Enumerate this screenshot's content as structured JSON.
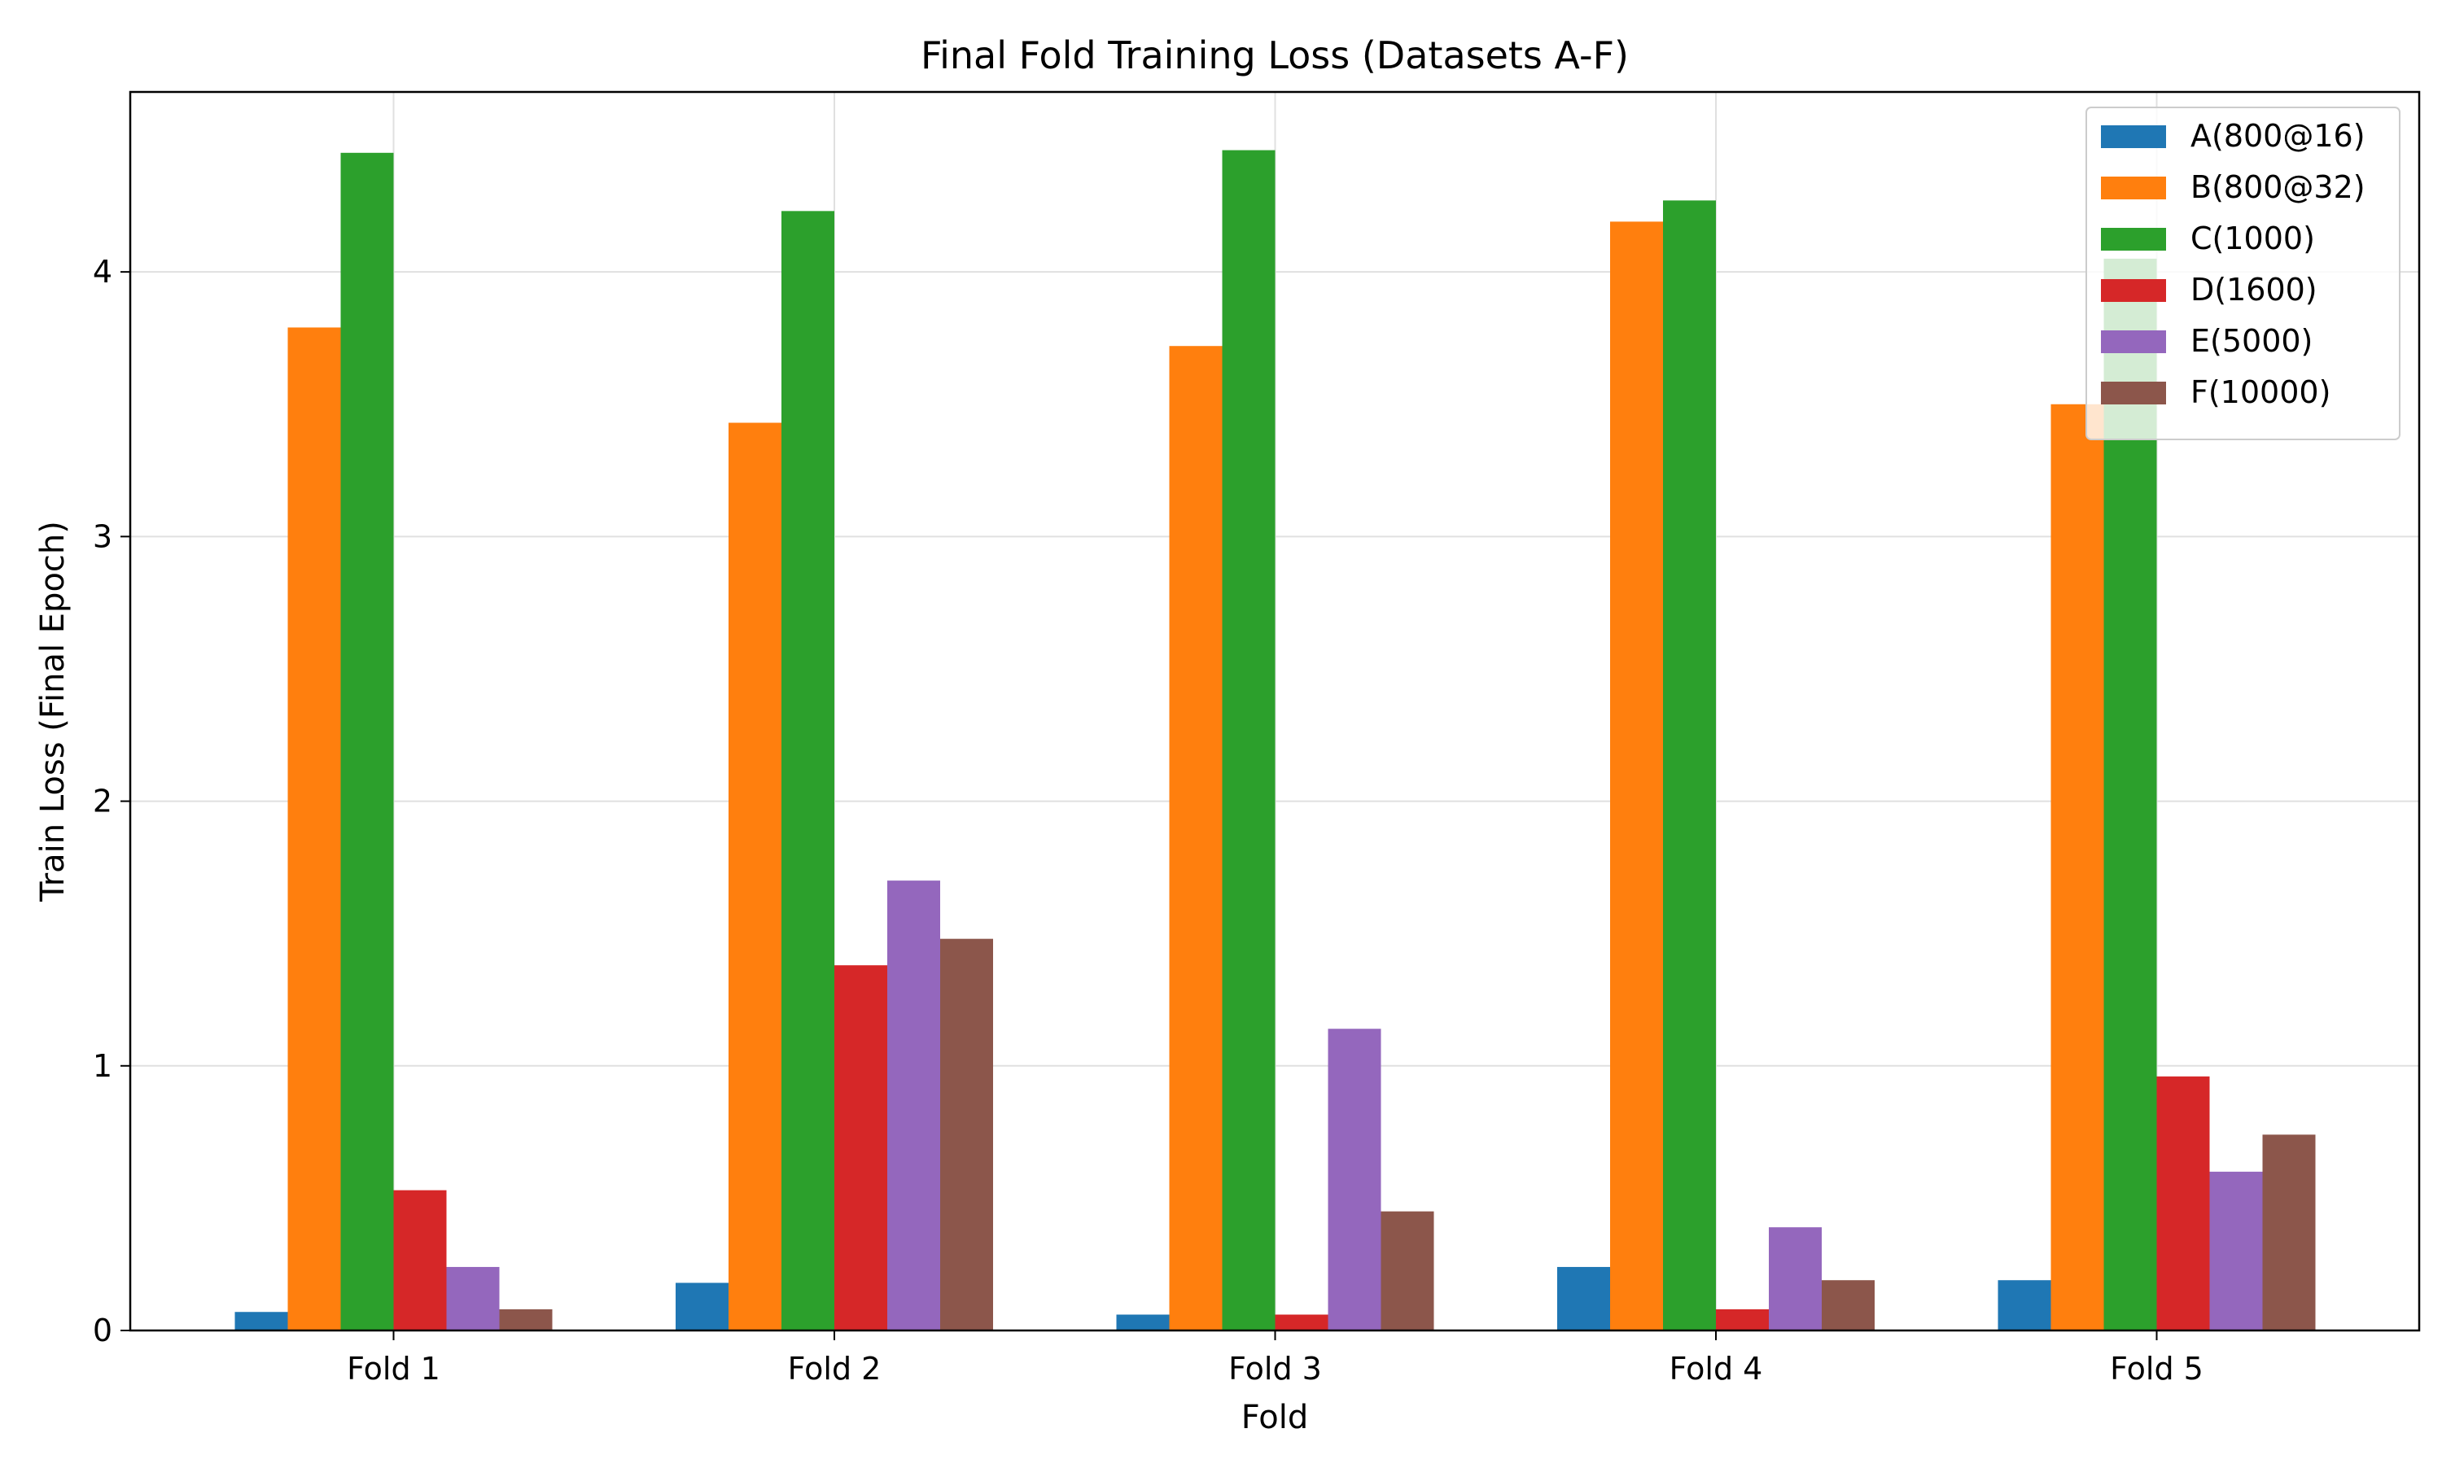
{
  "chart_data": {
    "type": "bar",
    "title": "Final Fold Training Loss (Datasets A-F)",
    "xlabel": "Fold",
    "ylabel": "Train Loss (Final Epoch)",
    "categories": [
      "Fold 1",
      "Fold 2",
      "Fold 3",
      "Fold 4",
      "Fold 5"
    ],
    "ylim": [
      0,
      4.68
    ],
    "yticks": [
      0,
      1,
      2,
      3,
      4
    ],
    "grid": true,
    "legend_position": "top-right",
    "series": [
      {
        "name": "A(800@16)",
        "color": "#1f77b4",
        "values": [
          0.07,
          0.18,
          0.06,
          0.24,
          0.19
        ]
      },
      {
        "name": "B(800@32)",
        "color": "#ff7f0e",
        "values": [
          3.79,
          3.43,
          3.72,
          4.19,
          3.5
        ]
      },
      {
        "name": "C(1000)",
        "color": "#2ca02c",
        "values": [
          4.45,
          4.23,
          4.46,
          4.27,
          4.05
        ]
      },
      {
        "name": "D(1600)",
        "color": "#d62728",
        "values": [
          0.53,
          1.38,
          0.06,
          0.08,
          0.96
        ]
      },
      {
        "name": "E(5000)",
        "color": "#9467bd",
        "values": [
          0.24,
          1.7,
          1.14,
          0.39,
          0.6
        ]
      },
      {
        "name": "F(10000)",
        "color": "#8c564b",
        "values": [
          0.08,
          1.48,
          0.45,
          0.19,
          0.74
        ]
      }
    ]
  }
}
